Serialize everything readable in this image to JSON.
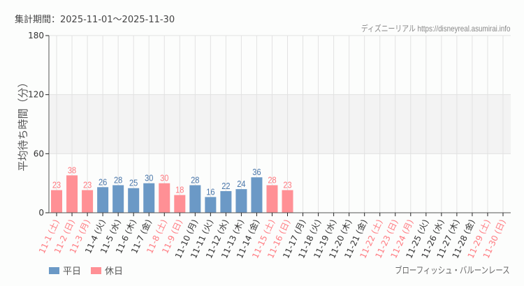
{
  "header": {
    "period_label": "集計期間：2025-11-01〜2025-11-30",
    "credit": "ディズニーリアル https://disneyreal.asumirai.info"
  },
  "legend": {
    "weekday_label": "平日",
    "holiday_label": "休日"
  },
  "attraction_name": "ブローフィッシュ・バルーンレース",
  "colors": {
    "weekday": "#6b99c6",
    "holiday": "#ff9095",
    "weekday_text": "#4a77aa",
    "holiday_text": "#ff7a80",
    "band": "#f3f3f3",
    "grid": "#e2e2e2",
    "axis": "#555555"
  },
  "chart_data": {
    "type": "bar",
    "title": "",
    "xlabel": "",
    "ylabel": "平均待ち時間（分）",
    "ylim": [
      0,
      180
    ],
    "yticks": [
      0,
      60,
      120,
      180
    ],
    "shaded_band": [
      60,
      120
    ],
    "grid": true,
    "legend_position": "bottom-left",
    "categories": [
      "11-1 (土)",
      "11-2 (日)",
      "11-3 (月)",
      "11-4 (火)",
      "11-5 (水)",
      "11-6 (木)",
      "11-7 (金)",
      "11-8 (土)",
      "11-9 (日)",
      "11-10 (月)",
      "11-11 (火)",
      "11-12 (水)",
      "11-13 (木)",
      "11-14 (金)",
      "11-15 (土)",
      "11-16 (日)",
      "11-17 (月)",
      "11-18 (火)",
      "11-19 (水)",
      "11-20 (木)",
      "11-21 (金)",
      "11-22 (土)",
      "11-23 (日)",
      "11-24 (月)",
      "11-25 (火)",
      "11-26 (水)",
      "11-27 (木)",
      "11-28 (金)",
      "11-29 (土)",
      "11-30 (日)"
    ],
    "day_type": [
      "holiday",
      "holiday",
      "holiday",
      "weekday",
      "weekday",
      "weekday",
      "weekday",
      "holiday",
      "holiday",
      "weekday",
      "weekday",
      "weekday",
      "weekday",
      "weekday",
      "holiday",
      "holiday",
      "weekday",
      "weekday",
      "weekday",
      "weekday",
      "weekday",
      "holiday",
      "holiday",
      "holiday",
      "weekday",
      "weekday",
      "weekday",
      "weekday",
      "holiday",
      "holiday"
    ],
    "values": [
      23,
      38,
      23,
      26,
      28,
      25,
      30,
      30,
      18,
      28,
      16,
      22,
      24,
      36,
      28,
      23,
      null,
      null,
      null,
      null,
      null,
      null,
      null,
      null,
      null,
      null,
      null,
      null,
      null,
      null
    ],
    "series": [
      {
        "name": "平日",
        "color": "#6b99c6"
      },
      {
        "name": "休日",
        "color": "#ff9095"
      }
    ]
  }
}
